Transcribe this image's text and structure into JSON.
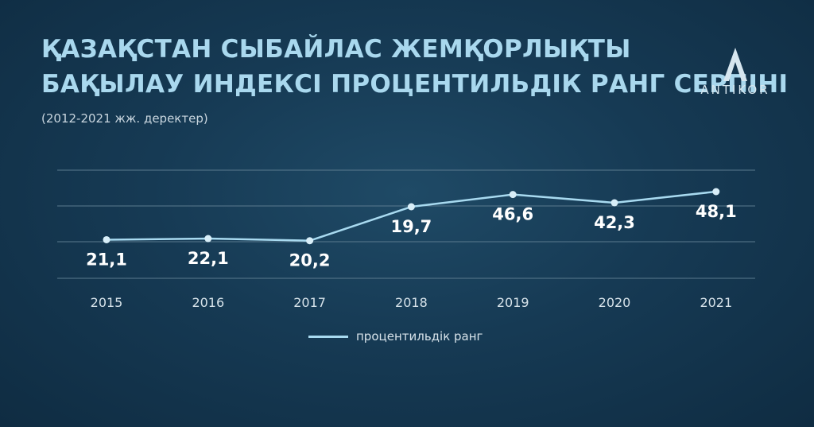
{
  "header": {
    "title_line1": "ҚАЗАҚСТАН СЫБАЙЛАС ЖЕМҚОРЛЫҚТЫ",
    "title_line2": "БАҚЫЛАУ ИНДЕКСІ ПРОЦЕНТИЛЬДІК РАНГ СЕРПІНІ",
    "subtitle": "(2012-2021 жж. деректер)"
  },
  "logo": {
    "text": "ANTIKOR",
    "icon": "antikor-logo-icon"
  },
  "colors": {
    "title": "#a9d8ee",
    "line": "#a8daf0",
    "point": "#d8eef8",
    "grid": "#5a7a8e",
    "label": "#ffffff",
    "tick": "#d7e3ea"
  },
  "chart_data": {
    "type": "line",
    "categories": [
      "2015",
      "2016",
      "2017",
      "2018",
      "2019",
      "2020",
      "2021"
    ],
    "series": [
      {
        "name": "процентильдік ранг",
        "values": [
          21.1,
          22.1,
          20.2,
          19.7,
          46.6,
          42.3,
          48.1
        ],
        "labels": [
          "21,1",
          "22,1",
          "20,2",
          "19,7",
          "46,6",
          "42,3",
          "48,1"
        ]
      }
    ],
    "grid": true,
    "legend": "bottom"
  }
}
